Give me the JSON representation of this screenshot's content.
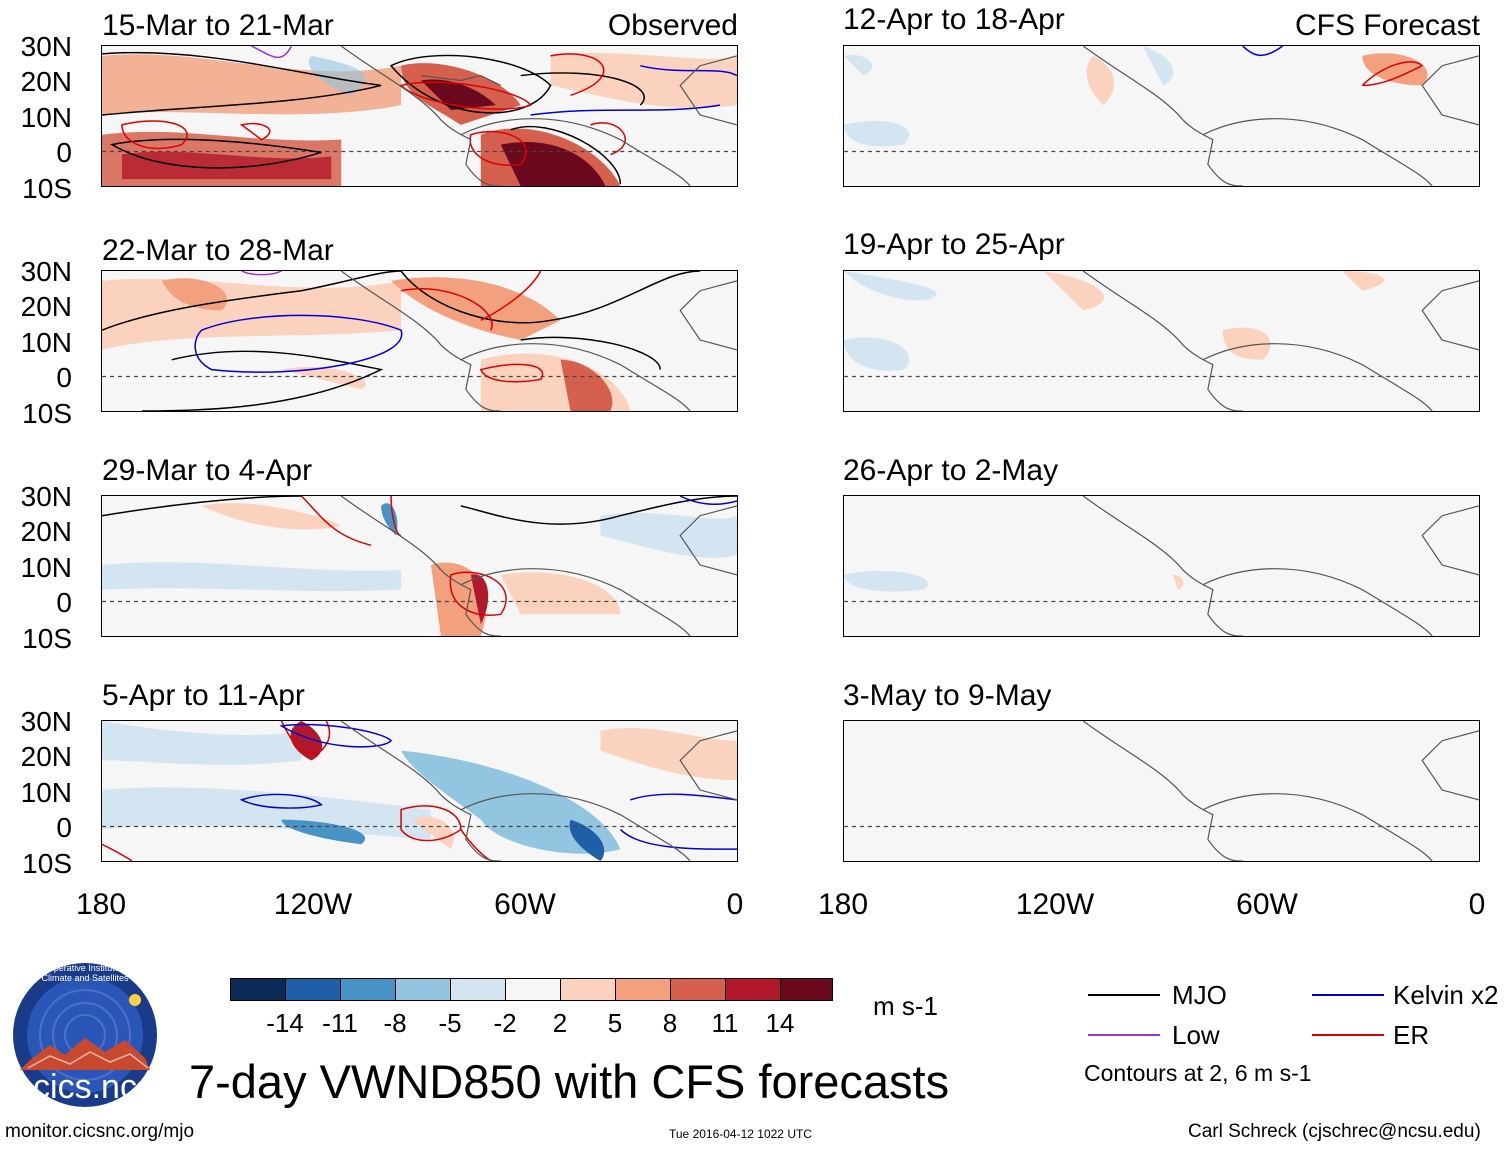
{
  "left_column_tag": "Observed",
  "right_column_tag": "CFS Forecast",
  "lat_labels": [
    "30N",
    "20N",
    "10N",
    "0",
    "10S"
  ],
  "lon_labels": [
    "180",
    "120W",
    "60W",
    "0"
  ],
  "panels_left": [
    {
      "title": "15-Mar to 21-Mar"
    },
    {
      "title": "22-Mar to 28-Mar"
    },
    {
      "title": "29-Mar to 4-Apr"
    },
    {
      "title": "5-Apr to 11-Apr"
    }
  ],
  "panels_right": [
    {
      "title": "12-Apr to 18-Apr"
    },
    {
      "title": "19-Apr to 25-Apr"
    },
    {
      "title": "26-Apr to 2-May"
    },
    {
      "title": "3-May to 9-May"
    }
  ],
  "colorbar": {
    "colors": [
      "#0b2a55",
      "#1f5fa8",
      "#4893c6",
      "#92c5df",
      "#d2e5f0",
      "#f6f6f6",
      "#fbd2bd",
      "#f2a07e",
      "#d5604e",
      "#b2182b",
      "#6b0a1e"
    ],
    "labels": [
      "-14",
      "-11",
      "-8",
      "-5",
      "-2",
      "2",
      "5",
      "8",
      "11",
      "14"
    ],
    "units": "m s-1"
  },
  "legend": {
    "items": [
      {
        "label": "MJO",
        "color": "#000000"
      },
      {
        "label": "Kelvin x2",
        "color": "#0000dd"
      },
      {
        "label": "Low",
        "color": "#9933dd"
      },
      {
        "label": "ER",
        "color": "#dd0000"
      }
    ],
    "note": "Contours at 2, 6 m s-1"
  },
  "logo_text": "cics.nc",
  "logo_ring_text": "Cooperative Institute for Climate and Satellites",
  "main_title": "7-day VWND850 with CFS forecasts",
  "footer": {
    "left": "monitor.cicsnc.org/mjo",
    "center": "Tue 2016-04-12 1022 UTC",
    "right": "Carl Schreck (cjschrec@ncsu.edu)"
  }
}
